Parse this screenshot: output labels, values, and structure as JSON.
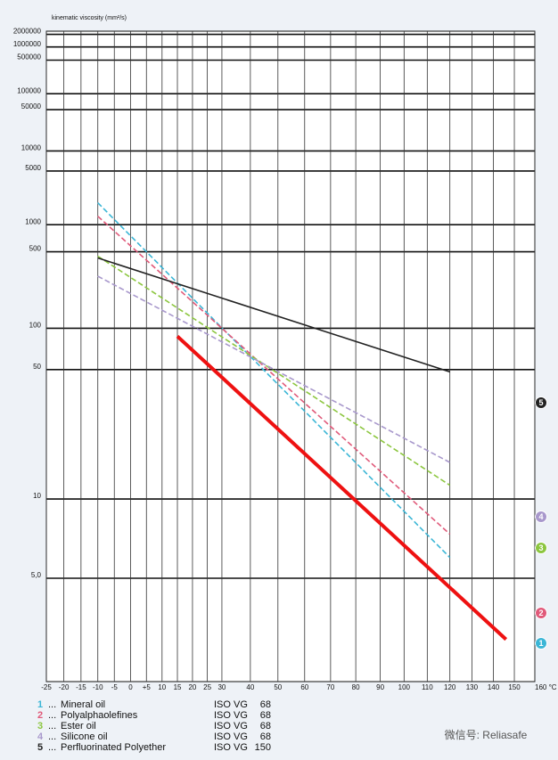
{
  "chart_data": {
    "type": "line",
    "y_label": "kinematic viscosity (mm²/s)",
    "xscale": "log-kelvin",
    "yscale": "walther",
    "xlim": [
      -25,
      160
    ],
    "xticks": [
      -25,
      -20,
      -15,
      -10,
      {
        "value": -5,
        "label": "-5"
      },
      0,
      {
        "value": 5,
        "label": "+5"
      },
      10,
      15,
      20,
      25,
      30,
      40,
      50,
      60,
      70,
      80,
      90,
      100,
      110,
      120,
      130,
      140,
      150,
      {
        "value": 160,
        "label": "160 °C"
      }
    ],
    "ylim": [
      2.5,
      2400000
    ],
    "yticks": [
      2000000,
      1000000,
      500000,
      100000,
      50000,
      10000,
      5000,
      1000,
      500,
      100,
      50,
      10,
      {
        "value": 5,
        "label": "5,0"
      }
    ],
    "grid": true,
    "legend_separator": "...",
    "series": [
      {
        "number": "1",
        "name": "Mineral oil",
        "grade": "ISO VG",
        "iso_vg": 68,
        "color": "#3bb6d6",
        "style": "dashed",
        "x": [
          -10,
          120
        ],
        "values": [
          1850,
          5.9
        ]
      },
      {
        "number": "2",
        "name": "Polyalphaolefines",
        "grade": "ISO VG",
        "iso_vg": 68,
        "color": "#e05a7a",
        "style": "dashed",
        "x": [
          -10,
          120
        ],
        "values": [
          1260,
          7.2
        ]
      },
      {
        "number": "3",
        "name": "Ester oil",
        "grade": "ISO VG",
        "iso_vg": 68,
        "color": "#8cc63f",
        "style": "dashed",
        "x": [
          -10,
          120
        ],
        "values": [
          450,
          11.5
        ]
      },
      {
        "number": "4",
        "name": "Silicone oil",
        "grade": "ISO VG",
        "iso_vg": 68,
        "color": "#a898cc",
        "style": "dashed",
        "x": [
          -10,
          120
        ],
        "values": [
          284,
          14.7
        ]
      },
      {
        "number": "5",
        "name": "Perfluorinated Polyether",
        "grade": "ISO VG",
        "iso_vg": 150,
        "color": "#222222",
        "style": "solid",
        "x": [
          -10,
          120
        ],
        "values": [
          431,
          48.3
        ]
      },
      {
        "color": "#ee1111",
        "style": "thick",
        "x": [
          15,
          146
        ],
        "values": [
          86.6,
          3.24
        ]
      }
    ],
    "watermark": "微信号: Reliasafe"
  }
}
